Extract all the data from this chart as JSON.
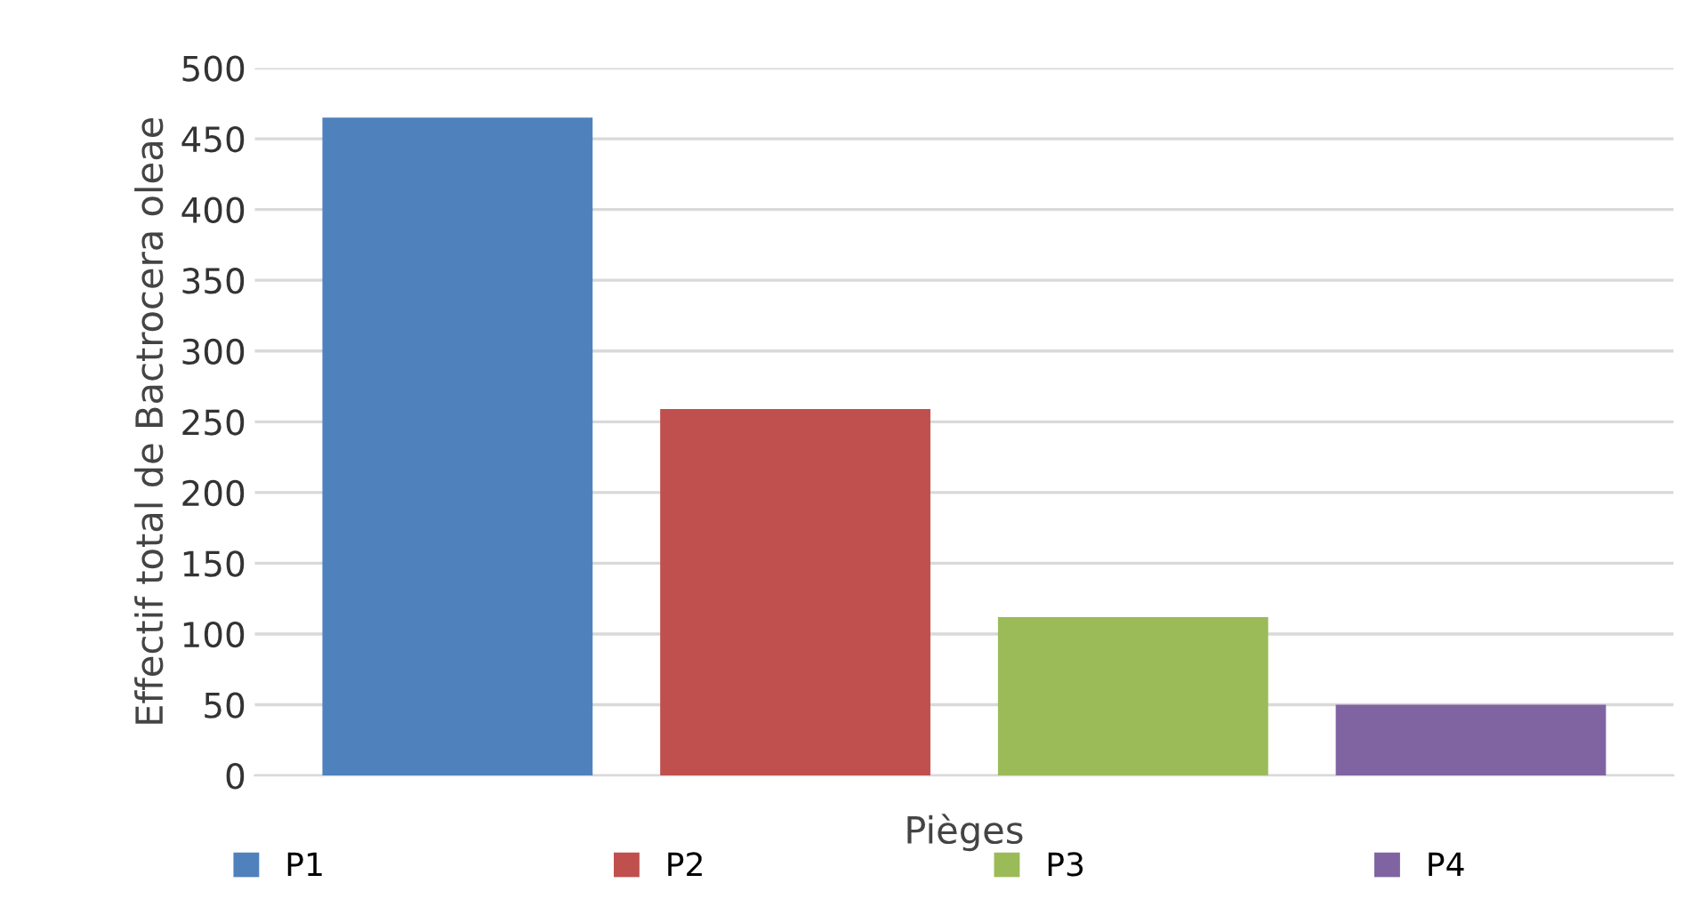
{
  "chart_data": {
    "type": "bar",
    "xlabel": "Pièges",
    "ylabel": "Effectif total de Bactrocera oleae",
    "categories": [
      null,
      null,
      null,
      null
    ],
    "series": [
      {
        "name": "P1",
        "color": "#4f81bd",
        "values": [
          465,
          null,
          null,
          null
        ]
      },
      {
        "name": "P2",
        "color": "#c0504d",
        "values": [
          null,
          259,
          null,
          null
        ]
      },
      {
        "name": "P3",
        "color": "#9bbb59",
        "values": [
          null,
          null,
          112,
          null
        ]
      },
      {
        "name": "P4",
        "color": "#8064a2",
        "values": [
          null,
          null,
          null,
          50
        ]
      }
    ],
    "ylim": [
      0,
      500
    ],
    "yticks": [
      0,
      50,
      100,
      150,
      200,
      250,
      300,
      350,
      400,
      450,
      500
    ],
    "grid": "y",
    "legend": "bottom"
  }
}
